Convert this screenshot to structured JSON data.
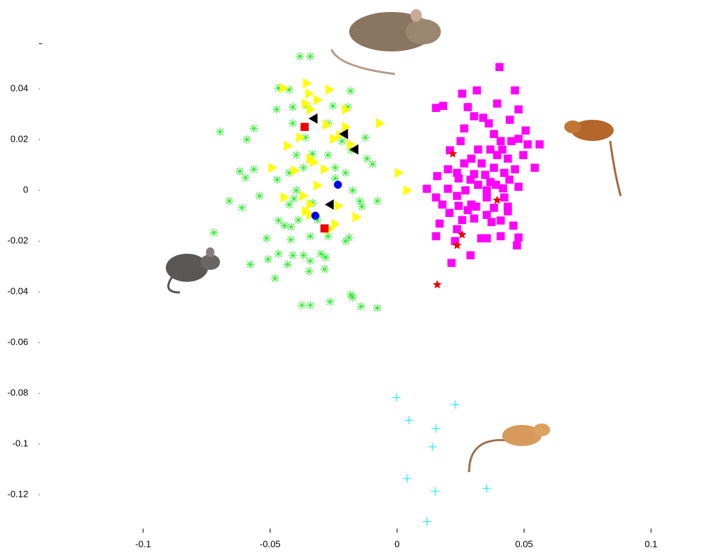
{
  "chart_data": {
    "type": "scatter",
    "xlim": [
      -0.1411,
      0.1236
    ],
    "ylim": [
      -0.1333,
      0.0578
    ],
    "xticks": [
      -0.1,
      -0.05,
      0,
      0.05,
      0.1
    ],
    "yticks": [
      0.04,
      0.02,
      0,
      -0.02,
      -0.04,
      -0.06,
      -0.08,
      -0.1,
      -0.12
    ],
    "series": [
      {
        "color": "#22ee22",
        "marker": "asterisk",
        "x": [
          -0.0383,
          -0.0342,
          -0.0425,
          -0.0467,
          -0.0183,
          -0.0411,
          -0.0475,
          -0.0356,
          -0.0253,
          -0.0194,
          -0.0697,
          -0.0564,
          -0.0411,
          -0.0272,
          -0.0592,
          -0.0361,
          -0.0125,
          -0.0217,
          -0.0181,
          -0.0333,
          -0.0397,
          -0.0272,
          -0.0119,
          -0.0619,
          -0.0564,
          -0.0369,
          -0.0244,
          -0.0203,
          -0.0097,
          -0.0597,
          -0.0472,
          -0.0425,
          -0.0244,
          -0.0175,
          -0.0542,
          -0.0397,
          -0.0406,
          -0.0661,
          -0.0425,
          -0.0333,
          -0.0147,
          -0.0078,
          -0.0611,
          -0.0139,
          -0.0467,
          -0.0389,
          -0.0314,
          -0.0444,
          -0.0417,
          -0.0722,
          -0.0514,
          -0.0342,
          -0.0272,
          -0.0189,
          -0.0203,
          -0.0419,
          -0.0467,
          -0.0411,
          -0.0369,
          -0.03,
          -0.0578,
          -0.0508,
          -0.0431,
          -0.0342,
          -0.0281,
          -0.0347,
          -0.0286,
          -0.0481,
          -0.0183,
          -0.0175,
          -0.0375,
          -0.0342,
          -0.0264,
          -0.0142,
          -0.0078
        ],
        "y": [
          0.0528,
          0.0528,
          0.0397,
          0.0403,
          0.0392,
          0.0328,
          0.0319,
          0.0333,
          0.0333,
          0.0328,
          0.0231,
          0.0244,
          0.0264,
          0.0264,
          0.02,
          0.0208,
          0.0208,
          0.0194,
          0.0158,
          0.0144,
          0.0139,
          0.0139,
          0.0125,
          0.0075,
          0.0083,
          0.0089,
          0.0089,
          0.0069,
          0.0103,
          0.005,
          0.0042,
          0.0069,
          0.0047,
          0,
          -0.0022,
          0,
          -0.0033,
          -0.0042,
          -0.0056,
          -0.005,
          -0.0042,
          -0.0042,
          -0.0069,
          -0.0064,
          -0.0119,
          -0.0117,
          -0.0117,
          -0.0139,
          -0.0144,
          -0.0167,
          -0.0189,
          -0.0181,
          -0.0181,
          -0.0186,
          -0.02,
          -0.0194,
          -0.025,
          -0.0256,
          -0.0256,
          -0.025,
          -0.0292,
          -0.0272,
          -0.0292,
          -0.0278,
          -0.0264,
          -0.0319,
          -0.0311,
          -0.0347,
          -0.0411,
          -0.0422,
          -0.0453,
          -0.0453,
          -0.0439,
          -0.0458,
          -0.0464
        ]
      },
      {
        "color": "#ffff00",
        "marker": "triangle-right",
        "x": [
          -0.0447,
          -0.0356,
          -0.0347,
          -0.0314,
          -0.0267,
          -0.0361,
          -0.0342,
          -0.0203,
          -0.0278,
          -0.0203,
          -0.0225,
          -0.0383,
          -0.025,
          -0.0431,
          -0.0183,
          -0.0069,
          -0.0342,
          -0.0328,
          -0.0492,
          -0.0403,
          -0.0286,
          0.0006,
          -0.0314,
          -0.0444,
          -0.0369,
          0.0039,
          -0.0342,
          -0.0231,
          -0.0361,
          -0.0342,
          -0.0161,
          -0.0244,
          -0.0267
        ],
        "y": [
          0.0403,
          0.0422,
          0.0381,
          0.0356,
          0.0397,
          0.0342,
          0.0319,
          0.0319,
          0.0258,
          0.025,
          0.0217,
          0.0208,
          0.0203,
          0.0175,
          0.0181,
          0.0264,
          0.0125,
          0.0111,
          0.0089,
          0.0078,
          0.0083,
          0.0069,
          0.0019,
          -0.0028,
          -0.0022,
          0,
          -0.0056,
          -0.0061,
          -0.0083,
          -0.0097,
          -0.0106,
          -0.0133,
          -0.0153
        ]
      },
      {
        "color": "#000000",
        "marker": "triangle-left",
        "x": [
          -0.0328,
          -0.0208,
          -0.0167,
          -0.0264
        ],
        "y": [
          0.0283,
          0.0222,
          0.0161,
          -0.0056
        ]
      },
      {
        "color": "#ee0000",
        "marker": "square",
        "x": [
          -0.0364,
          -0.0286
        ],
        "y": [
          0.025,
          -0.015
        ]
      },
      {
        "color": "#0000ee",
        "marker": "circle",
        "x": [
          -0.0233,
          -0.0322
        ],
        "y": [
          0.0022,
          -0.01
        ]
      },
      {
        "color": "#ff00ff",
        "marker": "square",
        "x": [
          0.0403,
          0.0464,
          0.0256,
          0.0314,
          0.0181,
          0.0153,
          0.0278,
          0.0394,
          0.0478,
          0.0303,
          0.0339,
          0.0361,
          0.0444,
          0.0506,
          0.0264,
          0.0478,
          0.0381,
          0.0408,
          0.045,
          0.0561,
          0.0514,
          0.025,
          0.0208,
          0.0319,
          0.0367,
          0.0414,
          0.0394,
          0.0292,
          0.0333,
          0.0436,
          0.0497,
          0.0264,
          0.02,
          0.0236,
          0.0381,
          0.0303,
          0.0347,
          0.0422,
          0.0542,
          0.0464,
          0.0158,
          0.0242,
          0.0289,
          0.0367,
          0.0319,
          0.0389,
          0.0442,
          0.0117,
          0.02,
          0.0269,
          0.0353,
          0.0417,
          0.0478,
          0.0153,
          0.0236,
          0.0353,
          0.0422,
          0.0242,
          0.0292,
          0.0311,
          0.0436,
          0.0178,
          0.0381,
          0.0353,
          0.0436,
          0.0206,
          0.0278,
          0.0256,
          0.0303,
          0.0372,
          0.0408,
          0.0458,
          0.0167,
          0.0236,
          0.0153,
          0.0331,
          0.0353,
          0.0408,
          0.0478,
          0.0228,
          0.0472,
          0.0289,
          0.0214
        ],
        "y": [
          0.0486,
          0.0394,
          0.0381,
          0.0394,
          0.0333,
          0.0325,
          0.0328,
          0.0342,
          0.0319,
          0.0292,
          0.0286,
          0.0264,
          0.0278,
          0.0236,
          0.0244,
          0.0203,
          0.0222,
          0.0194,
          0.0194,
          0.0181,
          0.0181,
          0.0194,
          0.0158,
          0.0161,
          0.0161,
          0.0161,
          0.0139,
          0.0125,
          0.0106,
          0.0125,
          0.0139,
          0.0106,
          0.0083,
          0.0069,
          0.0089,
          0.0064,
          0.0061,
          0.0069,
          0.0089,
          0.0083,
          0.0056,
          0.0047,
          0.0042,
          0.0033,
          0.0022,
          0.0022,
          0.0042,
          0.0006,
          0.0006,
          0,
          0,
          0.0008,
          0.0014,
          -0.0028,
          -0.0022,
          -0.0028,
          -0.0028,
          -0.0061,
          -0.0056,
          -0.0064,
          -0.0064,
          -0.0056,
          -0.0069,
          -0.0097,
          -0.0083,
          -0.0089,
          -0.0078,
          -0.0117,
          -0.0111,
          -0.0125,
          -0.0119,
          -0.0139,
          -0.0131,
          -0.0153,
          -0.0181,
          -0.0189,
          -0.0189,
          -0.0181,
          -0.0186,
          -0.02,
          -0.0217,
          -0.0256,
          -0.0286
        ]
      },
      {
        "color": "#ee0000",
        "marker": "star",
        "x": [
          0.0219,
          0.0394,
          0.0256,
          0.0236,
          0.0158
        ],
        "y": [
          0.0144,
          -0.0039,
          -0.0175,
          -0.0217,
          -0.0372
        ]
      },
      {
        "color": "#00e5ee",
        "marker": "plus",
        "x": [
          -0.0003,
          0.0047,
          0.0228,
          0.0153,
          0.0139,
          0.0039,
          0.015,
          0.0353,
          0.0117
        ],
        "y": [
          -0.0817,
          -0.0906,
          -0.0844,
          -0.0939,
          -0.1011,
          -0.1136,
          -0.1186,
          -0.1175,
          -0.1306
        ]
      }
    ]
  }
}
